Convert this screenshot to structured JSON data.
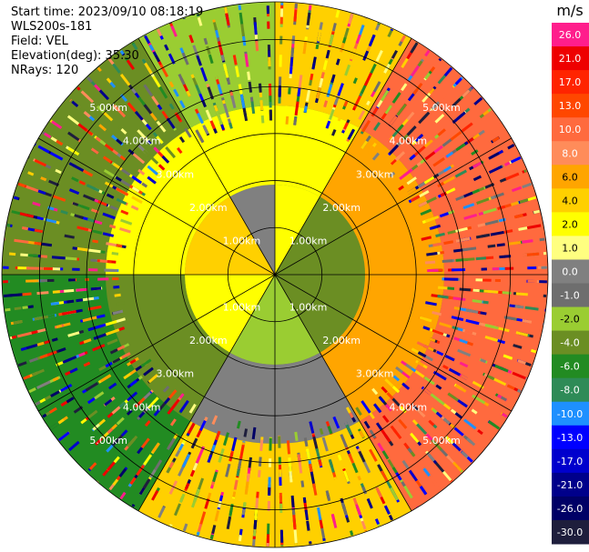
{
  "info": {
    "start_time": "Start time: 2023/09/10 08:18:19",
    "device": "WLS200s-181",
    "field": "Field: VEL",
    "elevation": "Elevation(deg): 35.30",
    "nrays": "NRays: 120"
  },
  "chart_data": {
    "type": "ppi",
    "field": "VEL",
    "range_ring_labels": [
      "1.00km",
      "2.00km",
      "3.00km",
      "4.00km",
      "5.00km"
    ],
    "range_rings_km": [
      1,
      2,
      3,
      4,
      5
    ],
    "max_range_km": 5.8,
    "azimuth_spokes_deg": [
      0,
      30,
      60,
      90,
      120,
      150,
      180,
      210,
      240,
      270,
      300,
      330
    ],
    "nrays": 120,
    "colorbar": {
      "unit": "m/s",
      "tick_labels": [
        "26.0",
        "21.0",
        "17.0",
        "13.0",
        "10.0",
        "8.0",
        "6.0",
        "4.0",
        "2.0",
        "1.0",
        "0.0",
        "-1.0",
        "-2.0",
        "-4.0",
        "-6.0",
        "-8.0",
        "-10.0",
        "-13.0",
        "-17.0",
        "-21.0",
        "-26.0",
        "-30.0"
      ],
      "colors": [
        "#ff1e8c",
        "#ee0000",
        "#ff2400",
        "#ff4700",
        "#ff6a3e",
        "#ff8c5a",
        "#ffa500",
        "#ffd000",
        "#ffff00",
        "#ffff80",
        "#808080",
        "#6e6e6e",
        "#9acd32",
        "#6b8e23",
        "#228b22",
        "#2e8b57",
        "#1e90ff",
        "#0000ff",
        "#0000cd",
        "#00008b",
        "#000066",
        "#1e1e3c"
      ]
    },
    "pattern_description_sectors": [
      {
        "az_from": 0,
        "az_to": 30,
        "near": "#ffff00",
        "mid": "#ffff00",
        "far": "#ffd000"
      },
      {
        "az_from": 30,
        "az_to": 90,
        "near": "#6b8e23",
        "mid": "#ffa500",
        "far": "#ff6a3e"
      },
      {
        "az_from": 90,
        "az_to": 150,
        "near": "#6b8e23",
        "mid": "#ffa500",
        "far": "#ff6a3e"
      },
      {
        "az_from": 150,
        "az_to": 210,
        "near": "#9acd32",
        "mid": "#808080",
        "far": "#ffd000"
      },
      {
        "az_from": 210,
        "az_to": 270,
        "near": "#ffff00",
        "mid": "#6b8e23",
        "far": "#228b22"
      },
      {
        "az_from": 270,
        "az_to": 330,
        "near": "#ffd000",
        "mid": "#ffff00",
        "far": "#6b8e23"
      },
      {
        "az_from": 330,
        "az_to": 360,
        "near": "#808080",
        "mid": "#ffff00",
        "far": "#9acd32"
      }
    ]
  }
}
